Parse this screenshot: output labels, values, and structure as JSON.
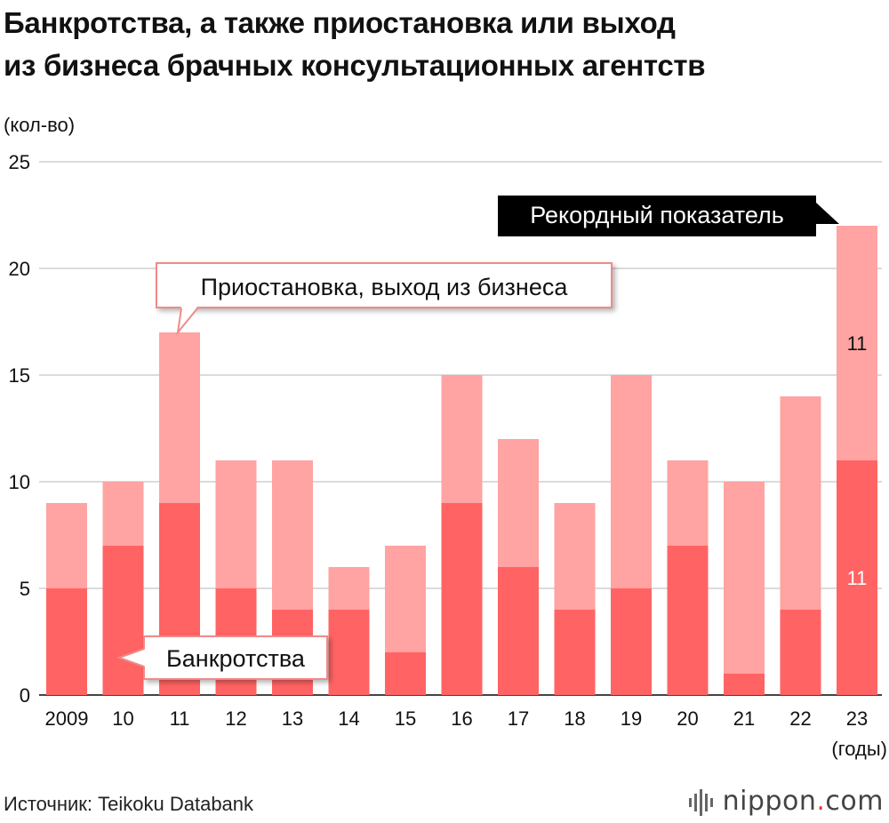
{
  "title_line1": "Банкротства, а также приостановка или выход",
  "title_line2": "из бизнеса брачных консультационных агентств",
  "source": "Источник: Teikoku Databank",
  "brand": {
    "name": "nippon",
    "dot": ".",
    "tld": "com",
    "logo_icon": "nippon-logo-icon"
  },
  "chart_data": {
    "type": "bar",
    "stacked": true,
    "title": "Банкротства, а также приостановка или выход из бизнеса брачных консультационных агентств",
    "ylabel": "(кол-во)",
    "xlabel": "(годы)",
    "ylim": [
      0,
      25
    ],
    "yticks": [
      0,
      5,
      10,
      15,
      20,
      25
    ],
    "grid": true,
    "categories": [
      "2009",
      "10",
      "11",
      "12",
      "13",
      "14",
      "15",
      "16",
      "17",
      "18",
      "19",
      "20",
      "21",
      "22",
      "23"
    ],
    "series": [
      {
        "name": "Банкротства",
        "color": "#ff6363",
        "values": [
          5,
          7,
          9,
          5,
          4,
          4,
          2,
          9,
          6,
          4,
          5,
          7,
          1,
          4,
          11
        ]
      },
      {
        "name": "Приостановка, выход из бизнеса",
        "color": "#ffa3a3",
        "values": [
          4,
          3,
          8,
          6,
          7,
          2,
          5,
          6,
          6,
          5,
          10,
          4,
          9,
          10,
          11
        ]
      }
    ],
    "data_labels": [
      {
        "category": "23",
        "series": "Банкротства",
        "text": "11"
      },
      {
        "category": "23",
        "series": "Приостановка, выход из бизнеса",
        "text": "11"
      }
    ],
    "annotations": [
      {
        "text": "Рекордный показатель",
        "target": "23"
      },
      {
        "text": "Приостановка, выход из бизнеса",
        "target": "11"
      },
      {
        "text": "Банкротства",
        "target": "10"
      }
    ]
  }
}
